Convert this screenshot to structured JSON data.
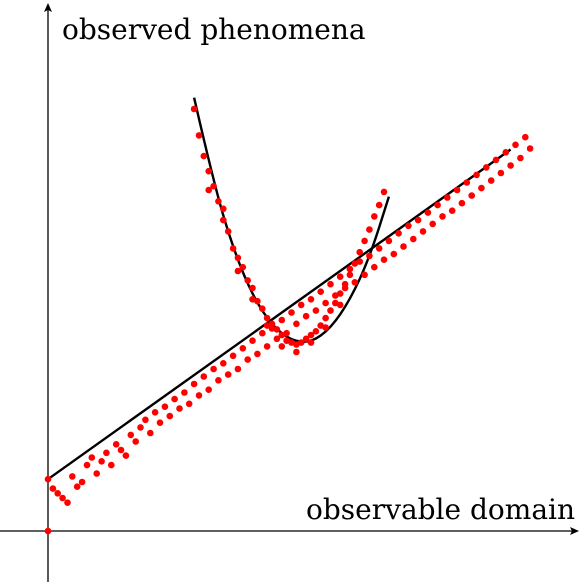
{
  "figure": {
    "y_axis_label": "observed phenomena",
    "x_axis_label": "observable domain"
  },
  "colors": {
    "points": "#ff0000",
    "curves": "#000000",
    "axes": "#000000",
    "background": "#ffffff"
  },
  "chart_data": {
    "type": "scatter",
    "series": [
      {
        "values": [
          [
            0.0,
            0.55
          ],
          [
            0.01,
            0.45
          ],
          [
            0.02,
            0.4
          ],
          [
            0.03,
            0.35
          ],
          [
            0.04,
            0.3
          ],
          [
            0.05,
            0.58
          ],
          [
            0.06,
            0.47
          ],
          [
            0.07,
            0.52
          ],
          [
            0.08,
            0.7
          ],
          [
            0.09,
            0.78
          ],
          [
            0.1,
            0.61
          ],
          [
            0.11,
            0.74
          ],
          [
            0.12,
            0.83
          ],
          [
            0.13,
            0.7
          ],
          [
            0.14,
            0.92
          ],
          [
            0.15,
            0.86
          ],
          [
            0.16,
            0.8
          ],
          [
            0.17,
            1.02
          ],
          [
            0.18,
            0.95
          ],
          [
            0.19,
            1.1
          ],
          [
            0.2,
            1.18
          ],
          [
            0.21,
            1.04
          ],
          [
            0.22,
            1.26
          ],
          [
            0.23,
            1.15
          ],
          [
            0.24,
            1.32
          ],
          [
            0.25,
            1.22
          ],
          [
            0.26,
            1.4
          ],
          [
            0.27,
            1.3
          ],
          [
            0.28,
            1.47
          ],
          [
            0.29,
            1.35
          ],
          [
            0.3,
            1.56
          ],
          [
            0.31,
            1.44
          ],
          [
            0.32,
            1.64
          ],
          [
            0.33,
            1.5
          ],
          [
            0.34,
            1.72
          ],
          [
            0.35,
            1.6
          ],
          [
            0.36,
            1.78
          ],
          [
            0.37,
            1.66
          ],
          [
            0.38,
            1.86
          ],
          [
            0.39,
            1.72
          ],
          [
            0.4,
            1.94
          ],
          [
            0.41,
            1.82
          ],
          [
            0.42,
            2.02
          ],
          [
            0.43,
            1.88
          ],
          [
            0.44,
            2.1
          ],
          [
            0.45,
            1.96
          ],
          [
            0.46,
            2.15
          ],
          [
            0.47,
            2.04
          ],
          [
            0.48,
            2.24
          ],
          [
            0.49,
            2.1
          ],
          [
            0.5,
            2.32
          ],
          [
            0.51,
            2.2
          ],
          [
            0.52,
            2.4
          ],
          [
            0.53,
            2.28
          ],
          [
            0.54,
            2.46
          ],
          [
            0.55,
            2.34
          ],
          [
            0.56,
            2.54
          ],
          [
            0.57,
            2.42
          ],
          [
            0.58,
            2.62
          ],
          [
            0.59,
            2.5
          ],
          [
            0.6,
            2.7
          ],
          [
            0.61,
            2.58
          ],
          [
            0.62,
            2.78
          ],
          [
            0.63,
            2.64
          ],
          [
            0.64,
            2.86
          ],
          [
            0.65,
            2.72
          ],
          [
            0.66,
            2.92
          ],
          [
            0.67,
            2.8
          ],
          [
            0.68,
            3.0
          ],
          [
            0.69,
            2.88
          ],
          [
            0.7,
            3.08
          ],
          [
            0.71,
            2.94
          ],
          [
            0.72,
            3.16
          ],
          [
            0.73,
            3.02
          ],
          [
            0.74,
            3.24
          ],
          [
            0.75,
            3.1
          ],
          [
            0.76,
            3.3
          ],
          [
            0.77,
            3.18
          ],
          [
            0.78,
            3.38
          ],
          [
            0.79,
            3.26
          ],
          [
            0.8,
            3.46
          ],
          [
            0.81,
            3.34
          ],
          [
            0.82,
            3.54
          ],
          [
            0.83,
            3.4
          ],
          [
            0.84,
            3.62
          ],
          [
            0.85,
            3.48
          ],
          [
            0.86,
            3.7
          ],
          [
            0.87,
            3.56
          ],
          [
            0.88,
            3.78
          ],
          [
            0.89,
            3.64
          ],
          [
            0.9,
            3.86
          ],
          [
            0.91,
            3.72
          ],
          [
            0.92,
            3.94
          ],
          [
            0.93,
            3.8
          ],
          [
            0.94,
            4.02
          ],
          [
            0.95,
            3.88
          ],
          [
            0.96,
            4.1
          ],
          [
            0.97,
            3.96
          ],
          [
            0.98,
            4.18
          ],
          [
            0.99,
            4.06
          ]
        ]
      },
      {
        "values": [
          [
            0.3,
            4.48
          ],
          [
            0.31,
            4.2
          ],
          [
            0.32,
            3.98
          ],
          [
            0.33,
            3.82
          ],
          [
            0.34,
            3.66
          ],
          [
            0.35,
            3.5
          ],
          [
            0.36,
            3.3
          ],
          [
            0.37,
            3.18
          ],
          [
            0.38,
            3.0
          ],
          [
            0.39,
            2.9
          ],
          [
            0.4,
            2.8
          ],
          [
            0.41,
            2.66
          ],
          [
            0.42,
            2.58
          ],
          [
            0.43,
            2.44
          ],
          [
            0.44,
            2.36
          ],
          [
            0.45,
            2.26
          ],
          [
            0.46,
            2.2
          ],
          [
            0.47,
            2.14
          ],
          [
            0.48,
            2.08
          ],
          [
            0.49,
            2.02
          ],
          [
            0.5,
            2.0
          ],
          [
            0.51,
            1.98
          ],
          [
            0.52,
            2.0
          ],
          [
            0.53,
            2.04
          ],
          [
            0.54,
            2.08
          ],
          [
            0.55,
            2.12
          ],
          [
            0.56,
            2.18
          ],
          [
            0.57,
            2.26
          ],
          [
            0.58,
            2.34
          ],
          [
            0.59,
            2.42
          ],
          [
            0.6,
            2.52
          ],
          [
            0.61,
            2.62
          ],
          [
            0.62,
            2.72
          ],
          [
            0.63,
            2.84
          ],
          [
            0.64,
            2.96
          ],
          [
            0.65,
            3.08
          ],
          [
            0.66,
            3.2
          ],
          [
            0.67,
            3.34
          ],
          [
            0.68,
            3.46
          ],
          [
            0.69,
            3.6
          ],
          [
            0.33,
            3.62
          ],
          [
            0.36,
            3.42
          ],
          [
            0.39,
            2.76
          ],
          [
            0.42,
            2.46
          ],
          [
            0.45,
            2.18
          ],
          [
            0.48,
            1.96
          ],
          [
            0.51,
            1.9
          ],
          [
            0.54,
            2.0
          ],
          [
            0.57,
            2.16
          ],
          [
            0.6,
            2.4
          ]
        ]
      }
    ],
    "fits": [
      {
        "type": "line",
        "x": [
          0.0,
          0.95
        ],
        "y": [
          0.55,
          4.05
        ]
      },
      {
        "type": "curve",
        "x": [
          0.3,
          0.34,
          0.38,
          0.42,
          0.46,
          0.5,
          0.54,
          0.58,
          0.62,
          0.66,
          0.7
        ],
        "y": [
          4.6,
          3.7,
          3.0,
          2.5,
          2.18,
          2.02,
          2.0,
          2.15,
          2.45,
          2.9,
          3.55
        ]
      }
    ],
    "xlim": [
      0,
      1
    ],
    "ylim": [
      0,
      5
    ],
    "grid": false
  }
}
